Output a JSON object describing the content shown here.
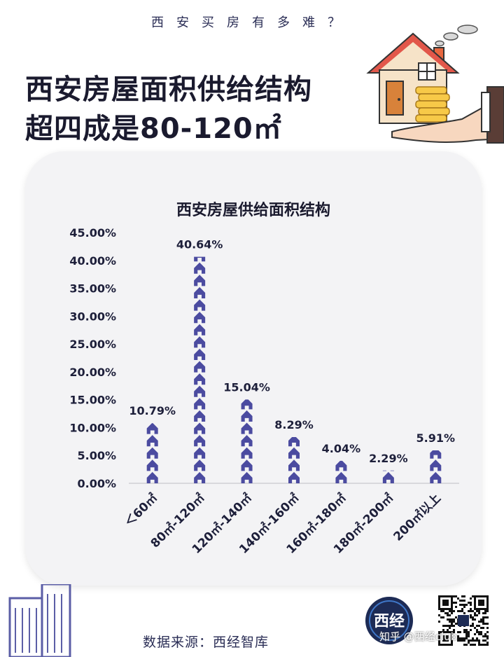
{
  "header": {
    "subtitle": "西安买房有多难？",
    "headline_line1": "西安房屋面积供给结构",
    "headline_line2": "超四成是80-120㎡"
  },
  "chart_data": {
    "type": "bar",
    "title": "西安房屋供给面积结构",
    "categories": [
      "＜60㎡",
      "80㎡-120㎡",
      "120㎡-140㎡",
      "140㎡-160㎡",
      "160㎡-180㎡",
      "180㎡-200㎡",
      "200㎡以上"
    ],
    "values": [
      10.79,
      40.64,
      15.04,
      8.29,
      4.04,
      2.29,
      5.91
    ],
    "value_labels": [
      "10.79%",
      "40.64%",
      "15.04%",
      "8.29%",
      "4.04%",
      "2.29%",
      "5.91%"
    ],
    "ylim": [
      0,
      45
    ],
    "yticks": [
      "0.00%",
      "5.00%",
      "10.00%",
      "15.00%",
      "20.00%",
      "25.00%",
      "30.00%",
      "35.00%",
      "40.00%",
      "45.00%"
    ],
    "grid": false,
    "bar_style": "stacked house icons",
    "colors": {
      "bar": "#4b4ba0",
      "text": "#1d1f3a"
    }
  },
  "footer": {
    "source": "数据来源：西经智库",
    "logo_text": "西经",
    "watermark": "知乎 @西经club"
  }
}
